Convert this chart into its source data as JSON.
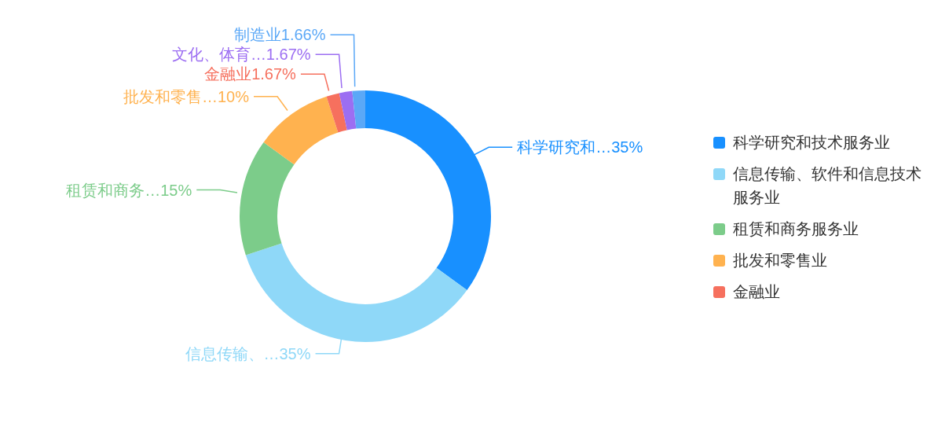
{
  "chart_data": {
    "type": "donut",
    "categories": [
      "科学研究和技术服务业",
      "信息传输、软件和信息技术服务业",
      "租赁和商务服务业",
      "批发和零售业",
      "金融业",
      null,
      null
    ],
    "values": [
      35,
      35,
      15,
      10,
      1.67,
      1.67,
      1.66
    ],
    "colors": [
      "#1890ff",
      "#8fd8f8",
      "#7ccc8a",
      "#ffb24f",
      "#f6705e",
      "#9c6ef2",
      "#5ba8f7"
    ],
    "value_labels": [
      "科学研究和…35%",
      "信息传输、…35%",
      "租赁和商务…15%",
      "批发和零售…10%",
      "金融业1.67%",
      "文化、体育…1.67%",
      "制造业1.66%"
    ],
    "legend": "right"
  }
}
